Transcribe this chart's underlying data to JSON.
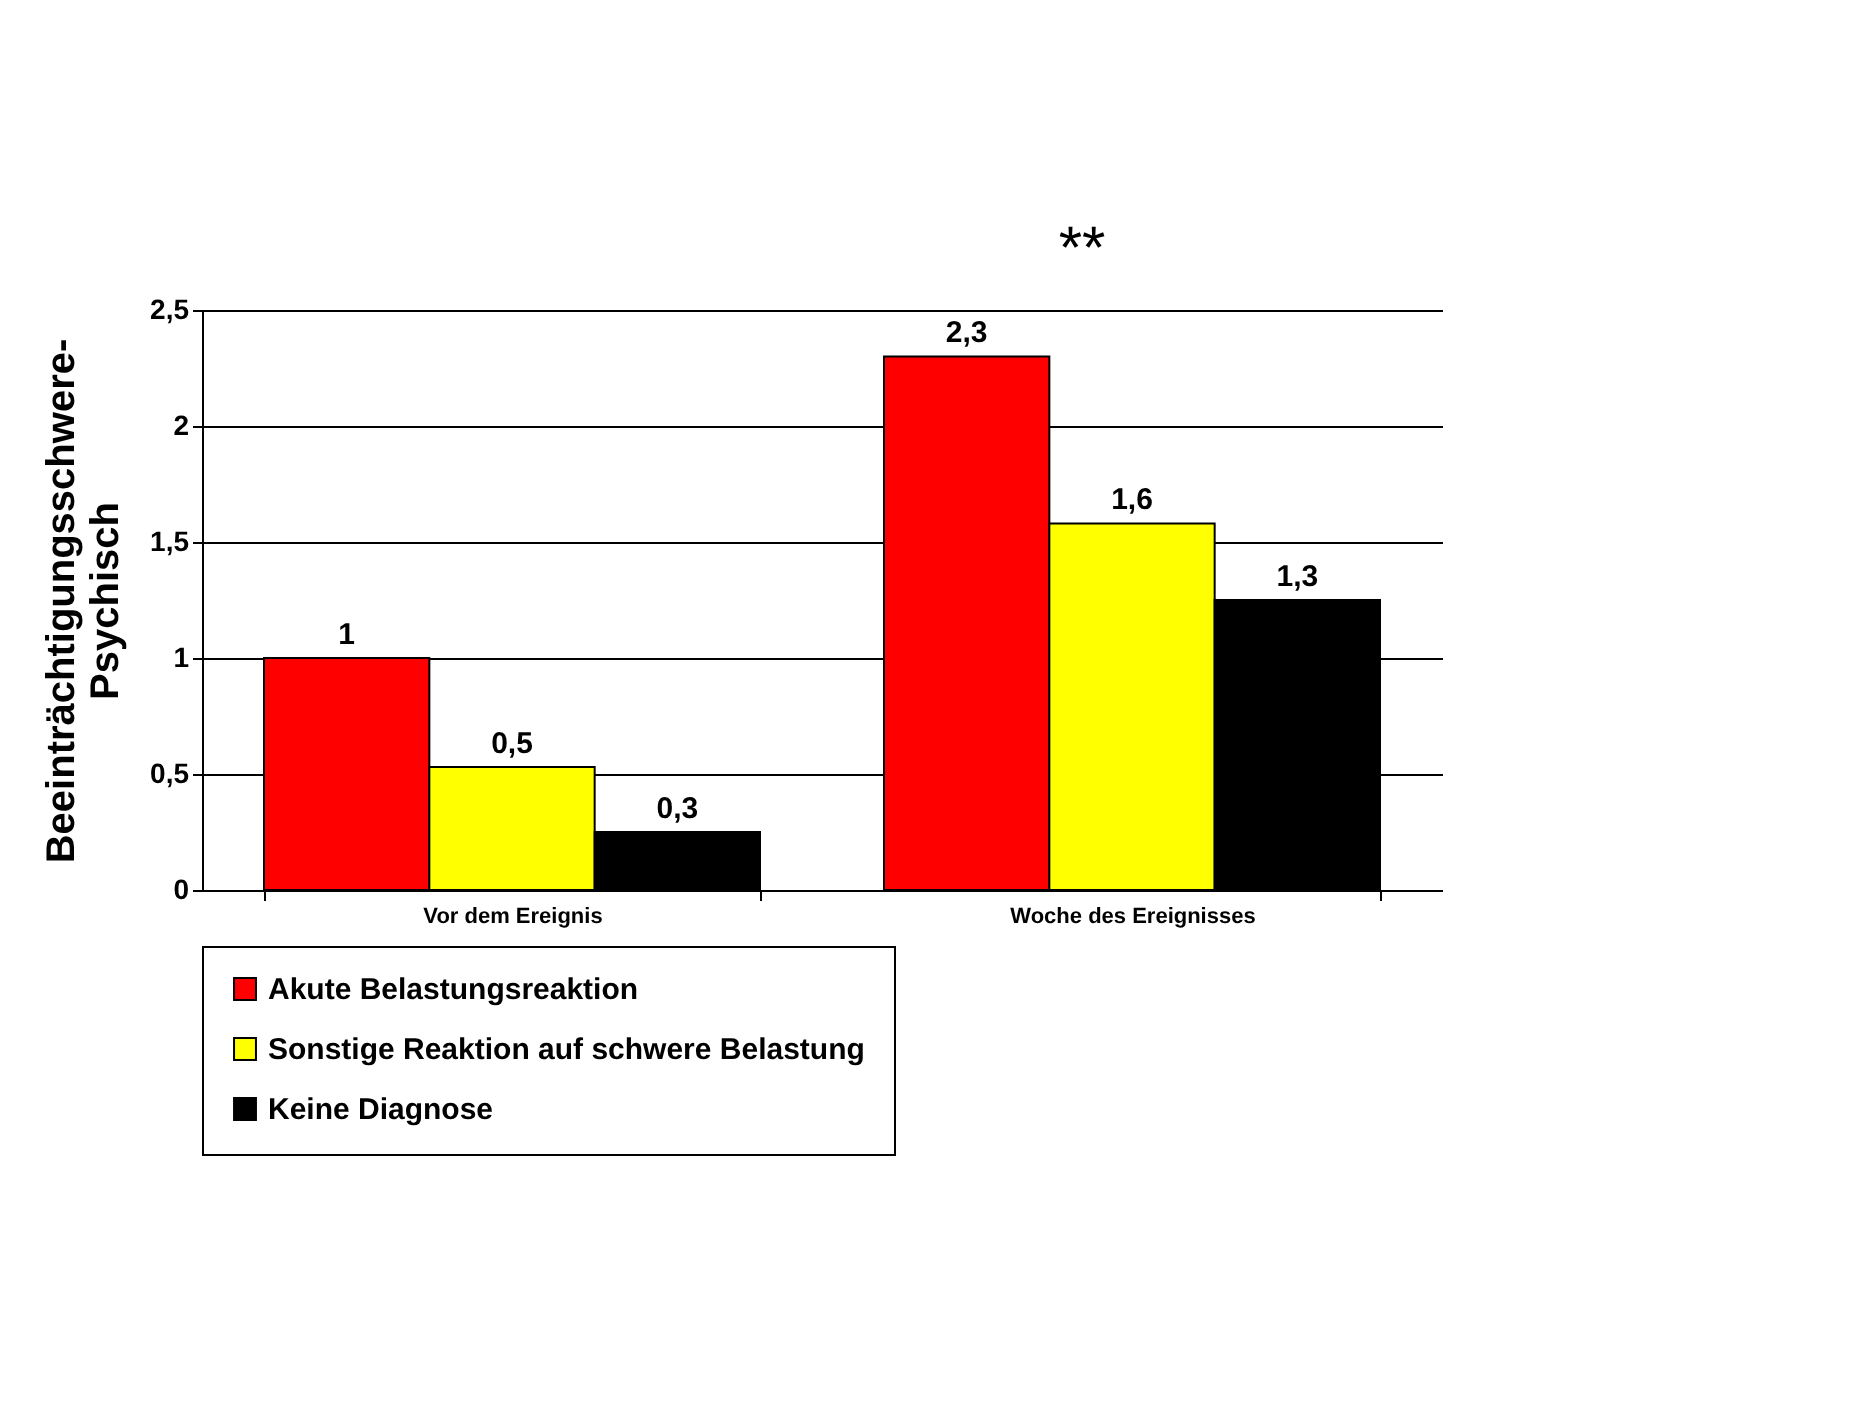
{
  "chart_data": {
    "type": "bar",
    "ylabel": "Beeinträchtigungsschwere-\nPsychisch",
    "categories": [
      "Vor dem Ereignis",
      "Woche des Ereignisses"
    ],
    "series": [
      {
        "name": "Akute Belastungsreaktion",
        "color": "#ff0000",
        "values": [
          1,
          2.3
        ],
        "value_labels": [
          "1",
          "2,3"
        ]
      },
      {
        "name": "Sonstige Reaktion auf schwere Belastung",
        "color": "#ffff00",
        "values": [
          0.53,
          1.58
        ],
        "value_labels": [
          "0,5",
          "1,6"
        ]
      },
      {
        "name": "Keine Diagnose",
        "color": "#000000",
        "values": [
          0.25,
          1.25
        ],
        "value_labels": [
          "0,3",
          "1,3"
        ]
      }
    ],
    "ylim": [
      0,
      2.5
    ],
    "yticks": [
      0,
      {
        "value": 0.5,
        "label": "0,5"
      },
      1,
      {
        "value": 1.5,
        "label": "1,5"
      },
      2,
      {
        "value": 2.5,
        "label": "2,5"
      }
    ],
    "grid": "y",
    "legend": "bottom",
    "annotations": [
      "**"
    ]
  }
}
